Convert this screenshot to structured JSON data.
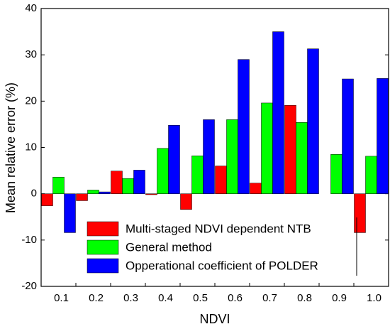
{
  "chart_data": {
    "type": "bar",
    "xlabel": "NDVI",
    "ylabel": "Mean relative error (%)",
    "categories": [
      "0.1",
      "0.2",
      "0.3",
      "0.4",
      "0.5",
      "0.6",
      "0.7",
      "0.8",
      "0.9",
      "1.0"
    ],
    "series": [
      {
        "name": "Multi-staged NDVI dependent NTB",
        "color": "#ff0000",
        "values": [
          -2.6,
          -1.5,
          4.9,
          -0.2,
          -3.4,
          6.0,
          2.3,
          19.1,
          null,
          -8.4
        ]
      },
      {
        "name": "General method",
        "color": "#00ff00",
        "values": [
          3.6,
          0.8,
          3.3,
          9.8,
          8.2,
          16.0,
          19.6,
          15.4,
          8.5,
          8.1
        ]
      },
      {
        "name": "Opperational coefficient of POLDER",
        "color": "#0000ff",
        "values": [
          -8.4,
          0.4,
          5.1,
          14.8,
          16.0,
          29.0,
          35.0,
          31.3,
          24.8,
          24.9
        ]
      }
    ],
    "ylim": [
      -20,
      40
    ],
    "yticks": [
      -20,
      -10,
      0,
      10,
      20,
      30,
      40
    ],
    "legend": "lower center"
  }
}
